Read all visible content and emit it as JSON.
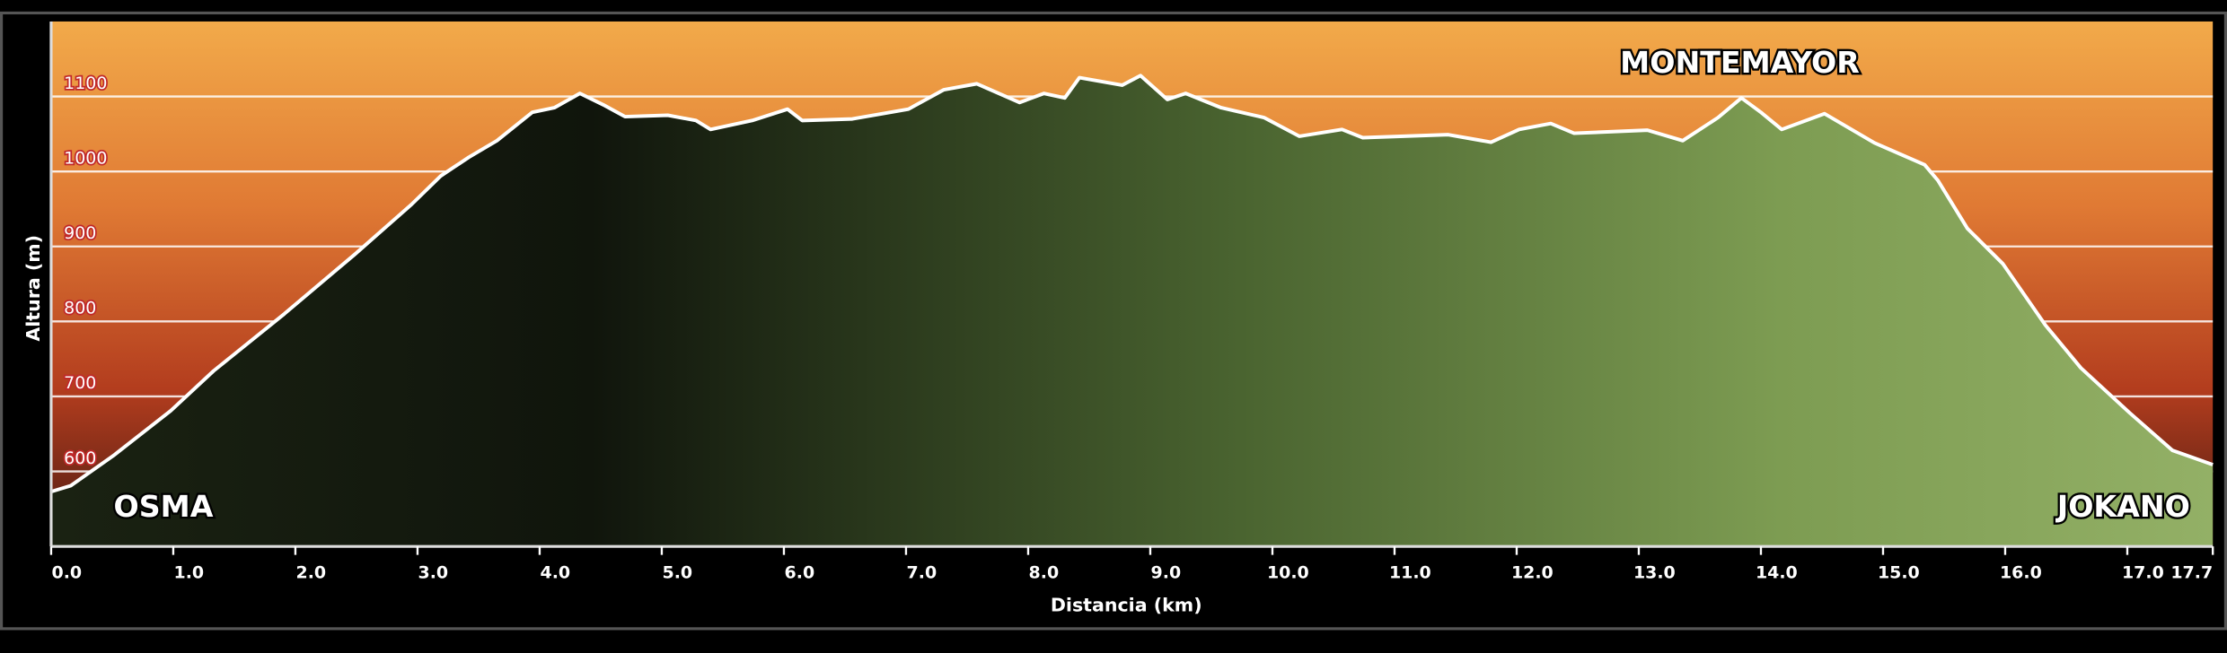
{
  "chart_data": {
    "type": "area",
    "x_label": "Distancia  (km)",
    "y_label": "Altura (m)",
    "annotations": [
      "OSMA",
      "MONTEMAYOR",
      "JOKANO"
    ],
    "x": [
      0,
      0.16,
      0.51,
      0.98,
      1.33,
      1.91,
      2.49,
      2.95,
      3.19,
      3.42,
      3.65,
      3.94,
      4.12,
      4.33,
      4.52,
      4.7,
      5.05,
      5.28,
      5.4,
      5.74,
      6.03,
      6.15,
      6.56,
      7.02,
      7.31,
      7.58,
      7.93,
      8.13,
      8.3,
      8.42,
      8.77,
      8.92,
      9.14,
      9.29,
      9.58,
      9.93,
      10.22,
      10.57,
      10.74,
      11.44,
      11.79,
      12.02,
      12.28,
      12.47,
      13.07,
      13.36,
      13.65,
      13.84,
      14.0,
      14.17,
      14.52,
      14.93,
      15.34,
      15.45,
      15.69,
      15.98,
      16.33,
      16.62,
      17.02,
      17.37,
      17.7
    ],
    "values": [
      573,
      581,
      621,
      681,
      734,
      810,
      890,
      956,
      994,
      1019,
      1041,
      1079,
      1085,
      1104,
      1089,
      1073,
      1075,
      1068,
      1056,
      1068,
      1083,
      1068,
      1070,
      1083,
      1109,
      1117,
      1092,
      1104,
      1098,
      1125,
      1115,
      1128,
      1096,
      1104,
      1085,
      1072,
      1047,
      1056,
      1045,
      1049,
      1039,
      1056,
      1064,
      1051,
      1055,
      1041,
      1072,
      1098,
      1079,
      1056,
      1077,
      1038,
      1009,
      988,
      924,
      877,
      795,
      738,
      678,
      628,
      609
    ],
    "xlim": [
      0,
      17.7
    ],
    "ylim": [
      500,
      1200
    ],
    "xticks": [
      {
        "value": 0,
        "label": "0.0"
      },
      {
        "value": 1,
        "label": "1.0"
      },
      {
        "value": 2,
        "label": "2.0"
      },
      {
        "value": 3,
        "label": "3.0"
      },
      {
        "value": 4,
        "label": "4.0"
      },
      {
        "value": 5,
        "label": "5.0"
      },
      {
        "value": 6,
        "label": "6.0"
      },
      {
        "value": 7,
        "label": "7.0"
      },
      {
        "value": 8,
        "label": "8.0"
      },
      {
        "value": 9,
        "label": "9.0"
      },
      {
        "value": 10,
        "label": "10.0"
      },
      {
        "value": 11,
        "label": "11.0"
      },
      {
        "value": 12,
        "label": "12.0"
      },
      {
        "value": 13,
        "label": "13.0"
      },
      {
        "value": 14,
        "label": "14.0"
      },
      {
        "value": 15,
        "label": "15.0"
      },
      {
        "value": 16,
        "label": "16.0"
      },
      {
        "value": 17,
        "label": "17.0"
      },
      17.7
    ],
    "yticks": [
      600,
      700,
      800,
      900,
      1000,
      1100
    ],
    "grid": true,
    "line_color": "#ffffff"
  }
}
